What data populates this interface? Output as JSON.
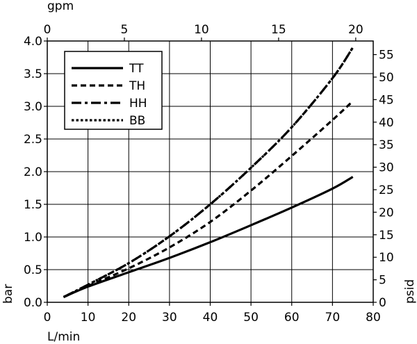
{
  "chart_data": {
    "type": "line",
    "xlabel": "L/min",
    "ylabel": "bar",
    "x_top_label": "gpm",
    "y_right_label": "psid",
    "xlim": [
      0,
      80
    ],
    "ylim": [
      0,
      4.0
    ],
    "x_top_lim": [
      0,
      21.134
    ],
    "y_right_lim": [
      0,
      58.015
    ],
    "x_ticks": [
      "0",
      "10",
      "20",
      "30",
      "40",
      "50",
      "60",
      "70",
      "80"
    ],
    "x_tick_values": [
      0,
      10,
      20,
      30,
      40,
      50,
      60,
      70,
      80
    ],
    "y_ticks": [
      "0.0",
      "0.5",
      "1.0",
      "1.5",
      "2.0",
      "2.5",
      "3.0",
      "3.5",
      "4.0"
    ],
    "y_tick_values": [
      0,
      0.5,
      1.0,
      1.5,
      2.0,
      2.5,
      3.0,
      3.5,
      4.0
    ],
    "x_top_ticks": [
      "0",
      "5",
      "10",
      "15",
      "20"
    ],
    "x_top_tick_values": [
      0,
      5,
      10,
      15,
      20
    ],
    "y_right_ticks": [
      "0",
      "5",
      "10",
      "15",
      "20",
      "25",
      "30",
      "35",
      "40",
      "45",
      "50",
      "55"
    ],
    "y_right_tick_values": [
      0,
      5,
      10,
      15,
      20,
      25,
      30,
      35,
      40,
      45,
      50,
      55
    ],
    "grid": true,
    "legend_position": "top-left",
    "series": [
      {
        "name": "TT",
        "dash": "solid",
        "x": [
          4,
          10,
          20,
          30,
          40,
          50,
          60,
          70,
          75
        ],
        "y": [
          0.08,
          0.24,
          0.46,
          0.68,
          0.92,
          1.18,
          1.45,
          1.74,
          1.92
        ]
      },
      {
        "name": "TH",
        "dash": "dashed",
        "x": [
          4,
          10,
          20,
          30,
          40,
          50,
          60,
          70,
          75
        ],
        "y": [
          0.08,
          0.25,
          0.52,
          0.84,
          1.23,
          1.71,
          2.24,
          2.79,
          3.08
        ]
      },
      {
        "name": "HH",
        "dash": "dashdot",
        "x": [
          4,
          10,
          20,
          30,
          40,
          50,
          60,
          70,
          75
        ],
        "y": [
          0.08,
          0.27,
          0.6,
          1.01,
          1.5,
          2.06,
          2.68,
          3.43,
          3.9
        ]
      },
      {
        "name": "BB",
        "dash": "dotted",
        "x": [
          4,
          10,
          20,
          30,
          40,
          50,
          60,
          70,
          75
        ],
        "y": [
          0.08,
          0.27,
          0.6,
          1.01,
          1.5,
          2.06,
          2.68,
          3.43,
          3.9
        ]
      }
    ]
  }
}
